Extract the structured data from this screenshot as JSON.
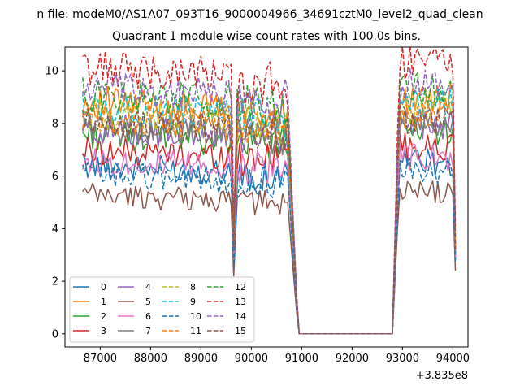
{
  "chart_data": {
    "type": "line",
    "suptitle": "n file: modeM0/AS1A07_093T16_9000004966_34691cztM0_level2_quad_clean",
    "title": "Quadrant 1 module wise count rates with 100.0s bins.",
    "xlabel": "",
    "ylabel": "",
    "offset_label": "+3.835e8",
    "x_offset": 383500000,
    "xlim": [
      86300,
      94300
    ],
    "ylim": [
      -0.5,
      10.9
    ],
    "xticks": [
      87000,
      88000,
      89000,
      90000,
      91000,
      92000,
      93000,
      94000
    ],
    "xtick_labels": [
      "87000",
      "88000",
      "89000",
      "90000",
      "91000",
      "92000",
      "93000",
      "94000"
    ],
    "yticks": [
      0,
      2,
      4,
      6,
      8,
      10
    ],
    "ytick_labels": [
      "0",
      "2",
      "4",
      "6",
      "8",
      "10"
    ],
    "grid": false,
    "legend_placement": "lower-left",
    "legend_columns": 4,
    "segments": {
      "plateau_start": 86650,
      "plateau_end": 89600,
      "dip_x": 89650,
      "mid_start": 89720,
      "mid_end": 90750,
      "fall_end": 90900,
      "zero_start": 90950,
      "zero_end": 92800,
      "rise_start": 92900,
      "late_start": 92950,
      "late_end": 94000,
      "final_x": 94050,
      "step": 50
    },
    "series": [
      {
        "name": "0",
        "color": "#1f77b4",
        "dash": "solid",
        "level": 6.4,
        "dip": 2.6,
        "final": 2.8
      },
      {
        "name": "1",
        "color": "#ff7f0e",
        "dash": "solid",
        "level": 8.8,
        "dip": 3.6,
        "final": 3.4
      },
      {
        "name": "2",
        "color": "#2ca02c",
        "dash": "solid",
        "level": 7.6,
        "dip": 3.2,
        "final": 3.0
      },
      {
        "name": "3",
        "color": "#d62728",
        "dash": "solid",
        "level": 7.0,
        "dip": 3.0,
        "final": 2.9
      },
      {
        "name": "4",
        "color": "#9467bd",
        "dash": "solid",
        "level": 7.8,
        "dip": 3.3,
        "final": 3.1
      },
      {
        "name": "5",
        "color": "#8c564b",
        "dash": "solid",
        "level": 5.3,
        "dip": 2.2,
        "final": 2.4
      },
      {
        "name": "6",
        "color": "#e377c2",
        "dash": "solid",
        "level": 6.6,
        "dip": 2.8,
        "final": 2.9
      },
      {
        "name": "7",
        "color": "#7f7f7f",
        "dash": "solid",
        "level": 7.9,
        "dip": 3.3,
        "final": 3.2
      },
      {
        "name": "8",
        "color": "#bcbd22",
        "dash": "dashed",
        "level": 8.4,
        "dip": 3.5,
        "final": 3.4
      },
      {
        "name": "9",
        "color": "#17becf",
        "dash": "dashed",
        "level": 8.6,
        "dip": 3.5,
        "final": 3.5
      },
      {
        "name": "10",
        "color": "#1f77b4",
        "dash": "dashed",
        "level": 6.1,
        "dip": 2.5,
        "final": 2.7
      },
      {
        "name": "11",
        "color": "#ff7f0e",
        "dash": "dashed",
        "level": 8.2,
        "dip": 3.4,
        "final": 3.3
      },
      {
        "name": "12",
        "color": "#2ca02c",
        "dash": "dashed",
        "level": 9.1,
        "dip": 3.8,
        "final": 3.6
      },
      {
        "name": "13",
        "color": "#d62728",
        "dash": "dashed",
        "level": 10.1,
        "dip": 4.2,
        "final": 4.1
      },
      {
        "name": "14",
        "color": "#9467bd",
        "dash": "dashed",
        "level": 9.3,
        "dip": 3.9,
        "final": 3.7
      },
      {
        "name": "15",
        "color": "#8c564b",
        "dash": "dashed",
        "level": 8.0,
        "dip": 3.3,
        "final": 3.2
      }
    ]
  }
}
